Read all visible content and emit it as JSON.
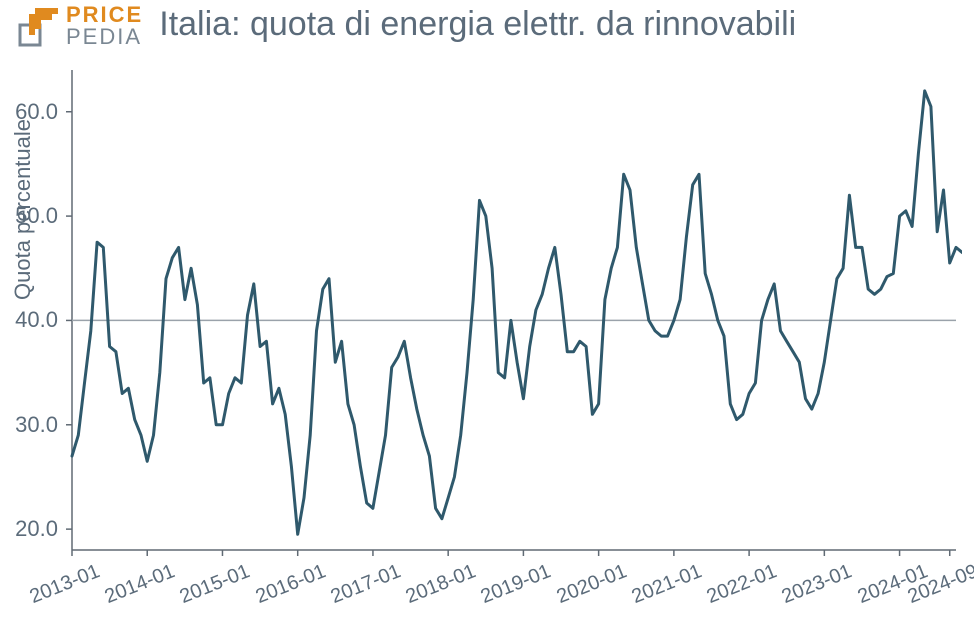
{
  "logo": {
    "top": "PRICE",
    "bottom": "PEDIA",
    "color_top": "#e08a1f",
    "color_bottom": "#7a8793"
  },
  "chart": {
    "type": "line",
    "title": "Italia: quota di energia elettr. da rinnovabili",
    "ylabel": "Quota percentuale",
    "ylim": [
      18,
      64
    ],
    "yticks": [
      20.0,
      30.0,
      40.0,
      50.0,
      60.0
    ],
    "xlim": [
      0,
      141
    ],
    "xticks_idx": [
      0,
      12,
      24,
      36,
      48,
      60,
      72,
      84,
      96,
      108,
      120,
      132,
      140
    ],
    "xticks_label": [
      "2013-01",
      "2014-01",
      "2015-01",
      "2016-01",
      "2017-01",
      "2018-01",
      "2019-01",
      "2020-01",
      "2021-01",
      "2022-01",
      "2023-01",
      "2024-01",
      "2024-09"
    ],
    "reference_line": 40.0,
    "series": {
      "values": [
        27,
        29,
        34,
        39,
        47.5,
        47,
        37.5,
        37,
        33,
        33.5,
        30.5,
        29,
        26.5,
        29,
        35,
        44,
        46,
        47,
        42,
        45,
        41.5,
        34,
        34.5,
        30,
        30,
        33,
        34.5,
        34,
        40.5,
        43.5,
        37.5,
        38,
        32,
        33.5,
        31,
        26,
        19.5,
        23,
        29,
        39,
        43,
        44,
        36,
        38,
        32,
        30,
        26,
        22.5,
        22,
        25.5,
        29,
        35.5,
        36.5,
        38,
        34.5,
        31.5,
        29,
        27,
        22,
        21,
        23,
        25,
        29,
        35,
        42,
        51.5,
        50,
        45,
        35,
        34.5,
        40,
        36,
        32.5,
        37.5,
        41,
        42.5,
        45,
        47,
        42.5,
        37,
        37,
        38,
        37.5,
        31,
        32,
        42,
        45,
        47,
        54,
        52.5,
        47,
        43.5,
        40,
        39,
        38.5,
        38.5,
        40,
        42,
        48,
        53,
        54,
        44.5,
        42.5,
        40,
        38.5,
        32,
        30.5,
        31,
        33,
        34,
        40,
        42,
        43.5,
        39,
        38,
        37,
        36,
        32.5,
        31.5,
        33,
        36,
        40,
        44,
        45,
        52,
        47,
        47,
        43,
        42.5,
        43,
        44.2,
        44.5,
        50,
        50.5,
        49,
        56,
        62,
        60.5,
        48.5,
        52.5,
        45.5,
        47,
        46.5
      ],
      "line_color": "#2f596c",
      "line_width": 3
    },
    "axis_color": "#606a74",
    "grid_line_color": "#9aa2aa",
    "background": "#ffffff",
    "title_fontsize": 34,
    "label_fontsize": 22,
    "tick_fontsize": 20,
    "xtick_rotation_deg": -22
  }
}
